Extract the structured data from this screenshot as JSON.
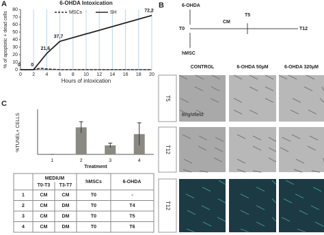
{
  "panel_labels": [
    "A",
    "B",
    "C"
  ],
  "chart_data": [
    {
      "type": "line",
      "title": "6-OHDA Intoxication",
      "x_label": "Hours of intoxication",
      "y_label": "% of apoptotic + dead cells",
      "xlim": [
        0,
        20
      ],
      "ylim": [
        0,
        80
      ],
      "xticks": [
        0,
        2,
        4,
        6,
        8,
        10,
        12,
        14,
        16,
        18,
        20
      ],
      "yticks": [
        0,
        10,
        20,
        30,
        40,
        50,
        60,
        70,
        80
      ],
      "grid": "x",
      "grid_color": "#b8d4ea",
      "series": [
        {
          "name": "MSCs",
          "color": "#222",
          "dash": true,
          "x": [
            0,
            2,
            3,
            4,
            6,
            10,
            20
          ],
          "values": [
            0,
            0,
            2,
            1,
            0,
            0,
            0
          ]
        },
        {
          "name": "SH",
          "color": "#222",
          "dash": false,
          "x": [
            0,
            2,
            4,
            6,
            20
          ],
          "values": [
            0,
            0,
            21.6,
            37.7,
            72.2
          ],
          "value_labels": [
            "0",
            "0",
            "21,6",
            "37,7",
            "72,2"
          ]
        }
      ]
    },
    {
      "type": "bar",
      "y_label": "%TUNEL+ CELLS",
      "x_label": "Treatment",
      "categories": [
        "1",
        "2",
        "3",
        "4"
      ],
      "values": [
        0,
        12,
        4,
        9
      ],
      "errors": [
        0,
        2.5,
        1,
        5
      ],
      "ylim": [
        0,
        20
      ],
      "color": "#8a8a82"
    }
  ],
  "timeline": {
    "treatment": "6-OHDA",
    "start": "T0",
    "medium": "CM",
    "mid": "T5",
    "end": "T12",
    "cells": "hMSC"
  },
  "images": {
    "columns": [
      "CONTROL",
      "6-OHDA 50µM",
      "6-OHDA 320µM"
    ],
    "rows": [
      "T5",
      "T12",
      "T12"
    ],
    "mode_label": "Brightfield"
  },
  "table": {
    "header": [
      "MEDIUM",
      "hMSCs",
      "6-OHDA"
    ],
    "subheader": [
      "T0-T3",
      "T3-T7"
    ],
    "rows": [
      [
        "1",
        "CM",
        "CM",
        "T0",
        "-"
      ],
      [
        "2",
        "CM",
        "DM",
        "T0",
        "T4"
      ],
      [
        "3",
        "CM",
        "DM",
        "T0",
        "T5"
      ],
      [
        "4",
        "CM",
        "DM",
        "T0",
        "T6"
      ]
    ]
  }
}
